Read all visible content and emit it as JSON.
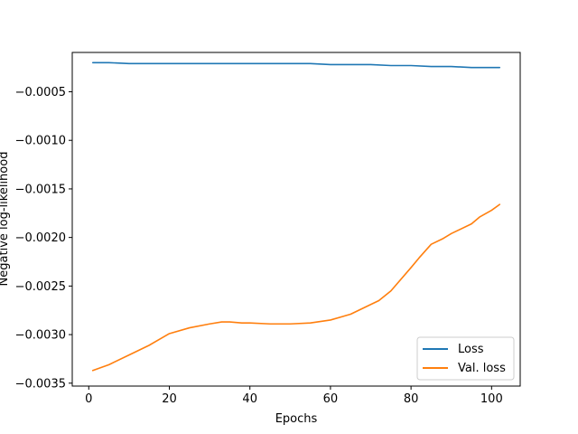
{
  "chart_data": {
    "type": "line",
    "title": "",
    "xlabel": "Epochs",
    "ylabel": "Negative log-likelihood",
    "xlim": [
      -4.1,
      107.1
    ],
    "ylim": [
      -0.00353,
      -9.5e-05
    ],
    "xticks": [
      0,
      20,
      40,
      60,
      80,
      100
    ],
    "xtick_labels": [
      "0",
      "20",
      "40",
      "60",
      "80",
      "100"
    ],
    "yticks": [
      -0.0035,
      -0.003,
      -0.0025,
      -0.002,
      -0.0015,
      -0.001,
      -0.0005
    ],
    "ytick_labels": [
      "−0.0035",
      "−0.0030",
      "−0.0025",
      "−0.0020",
      "−0.0015",
      "−0.0010",
      "−0.0005"
    ],
    "grid": false,
    "legend_position": "lower-right",
    "series": [
      {
        "name": "Loss",
        "color": "#1f77b4",
        "x": [
          1,
          5,
          10,
          15,
          20,
          25,
          30,
          35,
          40,
          45,
          50,
          55,
          60,
          65,
          70,
          75,
          80,
          85,
          90,
          95,
          100,
          102
        ],
        "y": [
          -0.0002,
          -0.0002,
          -0.00021,
          -0.00021,
          -0.00021,
          -0.00021,
          -0.00021,
          -0.00021,
          -0.00021,
          -0.00021,
          -0.00021,
          -0.00021,
          -0.00022,
          -0.00022,
          -0.00022,
          -0.00023,
          -0.00023,
          -0.00024,
          -0.00024,
          -0.00025,
          -0.00025,
          -0.00025
        ]
      },
      {
        "name": "Val. loss",
        "color": "#ff7f0e",
        "x": [
          1,
          5,
          10,
          15,
          20,
          25,
          30,
          33,
          35,
          38,
          40,
          45,
          50,
          55,
          60,
          65,
          70,
          72,
          75,
          80,
          82,
          85,
          88,
          90,
          95,
          97,
          100,
          102
        ],
        "y": [
          -0.00337,
          -0.00331,
          -0.00321,
          -0.00311,
          -0.00299,
          -0.00293,
          -0.00289,
          -0.00287,
          -0.00287,
          -0.00288,
          -0.00288,
          -0.00289,
          -0.00289,
          -0.00288,
          -0.00285,
          -0.00279,
          -0.00269,
          -0.00265,
          -0.00255,
          -0.00231,
          -0.00221,
          -0.00207,
          -0.00201,
          -0.00196,
          -0.00186,
          -0.00179,
          -0.00172,
          -0.00166
        ]
      }
    ]
  }
}
